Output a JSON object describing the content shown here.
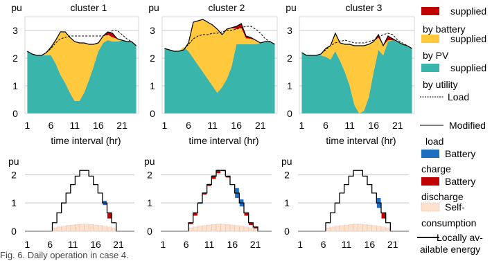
{
  "figure_caption": "Fig. 6. Daily operation in case 4.",
  "colors": {
    "battery": "#c00000",
    "pv": "#ffc83d",
    "utility": "#3ab5ac",
    "self": "#fde2d0",
    "self_edge": "#e9a27a",
    "charge": "#1f6fc0",
    "discharge": "#c00000",
    "grid": "#c8c8c8",
    "line": "#000000"
  },
  "legend_top": [
    {
      "key": "battery",
      "line1": "supplied",
      "line2": "by battery",
      "swatch": "battery"
    },
    {
      "key": "pv",
      "line1": "supplied",
      "line2": "by PV",
      "swatch": "pv"
    },
    {
      "key": "utility",
      "line1": "supplied",
      "line2": "by utility",
      "swatch": "utility"
    },
    {
      "key": "load",
      "line1": "Load",
      "line2": "",
      "swatch": "dashed"
    },
    {
      "key": "modified",
      "line1": "Modified",
      "line2": "load",
      "swatch": "solid-thin"
    }
  ],
  "legend_bottom": [
    {
      "key": "charge",
      "line1": "Battery",
      "line2": "charge",
      "swatch": "charge"
    },
    {
      "key": "discharge",
      "line1": "Battery",
      "line2": "discharge",
      "swatch": "discharge"
    },
    {
      "key": "self",
      "line1": "Self-",
      "line2": "consumption",
      "swatch": "self"
    },
    {
      "key": "local",
      "line1": "Locally av-",
      "line2": "ailable energy",
      "swatch": "solid-thick"
    }
  ],
  "chart_data": [
    {
      "type": "area",
      "title": "cluster 1",
      "ylabel": "pu",
      "xlabel": "time interval (hr)",
      "x": [
        1,
        2,
        3,
        4,
        5,
        6,
        7,
        8,
        9,
        10,
        11,
        12,
        13,
        14,
        15,
        16,
        17,
        18,
        19,
        20,
        21,
        22,
        23,
        24
      ],
      "xticks": [
        1,
        6,
        11,
        16,
        21
      ],
      "yticks": [
        0,
        1,
        2,
        3
      ],
      "ylim": [
        0,
        3.5
      ],
      "grid": true,
      "load": [
        2.25,
        2.15,
        2.1,
        2.1,
        2.2,
        2.35,
        2.55,
        2.7,
        2.75,
        2.8,
        2.8,
        2.8,
        2.8,
        2.8,
        2.8,
        2.8,
        2.8,
        2.85,
        3,
        3,
        2.85,
        2.7,
        2.6,
        2.45
      ],
      "modified": [
        2.25,
        2.15,
        2.1,
        2.1,
        2.2,
        2.4,
        2.65,
        2.95,
        2.95,
        2.75,
        2.6,
        2.55,
        2.55,
        2.5,
        2.5,
        2.55,
        2.8,
        2.95,
        2.9,
        2.7,
        2.65,
        2.6,
        2.6,
        2.45
      ],
      "utility": [
        2.25,
        2.15,
        2.1,
        2.1,
        2.1,
        2.1,
        1.8,
        1.4,
        1.1,
        0.75,
        0.45,
        0.45,
        0.75,
        1.2,
        1.7,
        2.25,
        2.55,
        2.65,
        2.6,
        2.6,
        2.65,
        2.6,
        2.6,
        2.45
      ],
      "battery": [
        0,
        0,
        0,
        0,
        0,
        0,
        0,
        0,
        0,
        0,
        0,
        0,
        0,
        0,
        0,
        0,
        0,
        0.1,
        0.15,
        0,
        0,
        0,
        0,
        0
      ]
    },
    {
      "type": "area",
      "title": "cluster 2",
      "ylabel": "pu",
      "xlabel": "time interval (hr)",
      "x": [
        1,
        2,
        3,
        4,
        5,
        6,
        7,
        8,
        9,
        10,
        11,
        12,
        13,
        14,
        15,
        16,
        17,
        18,
        19,
        20,
        21,
        22,
        23,
        24
      ],
      "xticks": [
        1,
        6,
        11,
        16,
        21
      ],
      "yticks": [
        0,
        1,
        2,
        3
      ],
      "ylim": [
        0,
        3.5
      ],
      "grid": true,
      "load": [
        2.35,
        2.3,
        2.25,
        2.25,
        2.3,
        2.5,
        2.7,
        2.8,
        2.85,
        2.85,
        2.9,
        2.9,
        2.95,
        3,
        3,
        3.05,
        3.1,
        3.15,
        3.15,
        3.05,
        2.9,
        2.7,
        2.6,
        2.5
      ],
      "modified": [
        2.35,
        2.3,
        2.25,
        2.25,
        2.3,
        2.55,
        3.3,
        3.35,
        3.4,
        3.3,
        3.2,
        3.05,
        2.85,
        3.05,
        3.1,
        3.15,
        3.25,
        2.8,
        2.75,
        2.65,
        2.55,
        2.6,
        2.6,
        2.5
      ],
      "utility": [
        2.35,
        2.3,
        2.25,
        2.25,
        2.4,
        2.25,
        2.0,
        1.75,
        1.5,
        1.25,
        1.0,
        0.75,
        0.95,
        1.25,
        1.7,
        2.5,
        2.5,
        2.5,
        2.5,
        2.5,
        2.55,
        2.6,
        2.6,
        2.5
      ],
      "battery": [
        0,
        0,
        0,
        0,
        0,
        0,
        0,
        0,
        0,
        0,
        0,
        0,
        0,
        0,
        0,
        0.1,
        0.15,
        0.08,
        0.05,
        0,
        0,
        0,
        0,
        0
      ]
    },
    {
      "type": "area",
      "title": "cluster 3",
      "ylabel": "pu",
      "xlabel": "time interval (hr)",
      "x": [
        1,
        2,
        3,
        4,
        5,
        6,
        7,
        8,
        9,
        10,
        11,
        12,
        13,
        14,
        15,
        16,
        17,
        18,
        19,
        20,
        21,
        22,
        23,
        24
      ],
      "xticks": [
        1,
        6,
        11,
        16,
        21
      ],
      "yticks": [
        0,
        1,
        2,
        3
      ],
      "ylim": [
        0,
        3.5
      ],
      "grid": true,
      "load": [
        2.2,
        2.1,
        2.1,
        2.1,
        2.15,
        2.3,
        2.45,
        2.55,
        2.6,
        2.65,
        2.6,
        2.55,
        2.55,
        2.55,
        2.6,
        2.65,
        2.75,
        2.85,
        2.9,
        2.85,
        2.65,
        2.55,
        2.45,
        2.35
      ],
      "modified": [
        2.2,
        2.1,
        2.1,
        2.1,
        2.15,
        2.35,
        2.45,
        2.9,
        2.55,
        2.5,
        2.5,
        2.45,
        2.45,
        2.45,
        2.5,
        2.6,
        2.85,
        2.45,
        2.8,
        2.7,
        2.6,
        2.5,
        2.45,
        2.35
      ],
      "utility": [
        2.2,
        2.1,
        2.1,
        2.1,
        2.1,
        2.05,
        1.95,
        2.25,
        1.9,
        1.5,
        1.0,
        0.3,
        0.0,
        0.1,
        0.6,
        1.5,
        2.3,
        2.1,
        2.6,
        2.65,
        2.6,
        2.5,
        2.45,
        2.35
      ],
      "battery": [
        0,
        0,
        0,
        0,
        0,
        0,
        0,
        0,
        0,
        0,
        0,
        0,
        0,
        0,
        0,
        0,
        0.1,
        0,
        0.15,
        0.05,
        0,
        0,
        0,
        0
      ]
    },
    {
      "type": "bar",
      "ylabel": "pu",
      "x": [
        1,
        2,
        3,
        4,
        5,
        6,
        7,
        8,
        9,
        10,
        11,
        12,
        13,
        14,
        15,
        16,
        17,
        18,
        19,
        20,
        21,
        22,
        23,
        24
      ],
      "xticks": [
        1,
        6,
        11,
        16,
        21
      ],
      "yticks": [
        0,
        1,
        2
      ],
      "ylim": [
        0,
        2.4
      ],
      "grid": true,
      "local": [
        0,
        0,
        0,
        0,
        0,
        0,
        0.3,
        0.65,
        1.0,
        1.35,
        1.65,
        1.95,
        2.15,
        2.15,
        1.95,
        1.65,
        1.35,
        1.0,
        0.65,
        0.3,
        0,
        0,
        0,
        0
      ],
      "self": [
        0,
        0,
        0,
        0,
        0,
        0,
        0.12,
        0.15,
        0.18,
        0.2,
        0.22,
        0.24,
        0.25,
        0.25,
        0.24,
        0.22,
        0.2,
        0.18,
        0.15,
        0.12,
        0,
        0,
        0,
        0
      ],
      "charge": [
        0,
        0,
        0,
        0,
        0,
        0,
        0,
        0,
        0,
        0,
        0,
        0,
        0,
        0,
        0,
        0,
        0,
        0.15,
        0,
        0,
        0,
        0,
        0,
        0
      ],
      "discharge": [
        0,
        0,
        0,
        0,
        0,
        0,
        0,
        0,
        0,
        0,
        0,
        0,
        0,
        0,
        0,
        0,
        0,
        0,
        0.2,
        0,
        0,
        0,
        0,
        0
      ]
    },
    {
      "type": "bar",
      "ylabel": "pu",
      "x": [
        1,
        2,
        3,
        4,
        5,
        6,
        7,
        8,
        9,
        10,
        11,
        12,
        13,
        14,
        15,
        16,
        17,
        18,
        19,
        20,
        21,
        22,
        23,
        24
      ],
      "xticks": [
        1,
        6,
        11,
        16,
        21
      ],
      "yticks": [
        0,
        1,
        2
      ],
      "ylim": [
        0,
        2.4
      ],
      "grid": true,
      "local": [
        0,
        0,
        0,
        0,
        0,
        0,
        0.3,
        0.65,
        1.0,
        1.35,
        1.65,
        1.95,
        2.15,
        2.15,
        1.95,
        1.65,
        1.35,
        1.0,
        0.65,
        0.3,
        0.15,
        0,
        0,
        0
      ],
      "self": [
        0,
        0,
        0,
        0,
        0,
        0,
        0.12,
        0.15,
        0.18,
        0.2,
        0.22,
        0.24,
        0.25,
        0.25,
        0.24,
        0.22,
        0.2,
        0.18,
        0.15,
        0.12,
        0.08,
        0,
        0,
        0
      ],
      "charge": [
        0,
        0,
        0,
        0,
        0,
        0,
        0,
        0,
        0.05,
        0.05,
        0.05,
        0.05,
        0.05,
        0.05,
        0,
        0,
        0.35,
        0.25,
        0,
        0,
        0,
        0,
        0,
        0
      ],
      "discharge": [
        0,
        0,
        0,
        0,
        0,
        0,
        0.05,
        0.1,
        0,
        0.05,
        0.05,
        0.1,
        0.1,
        0,
        0.05,
        0,
        0,
        0,
        0.1,
        0.08,
        0.05,
        0,
        0,
        0
      ]
    },
    {
      "type": "bar",
      "ylabel": "pu",
      "x": [
        1,
        2,
        3,
        4,
        5,
        6,
        7,
        8,
        9,
        10,
        11,
        12,
        13,
        14,
        15,
        16,
        17,
        18,
        19,
        20,
        21,
        22,
        23,
        24
      ],
      "xticks": [
        1,
        6,
        11,
        16,
        21
      ],
      "yticks": [
        0,
        1,
        2
      ],
      "ylim": [
        0,
        2.4
      ],
      "grid": true,
      "local": [
        0,
        0,
        0,
        0,
        0,
        0,
        0.3,
        0.65,
        1.0,
        1.35,
        1.65,
        1.95,
        2.15,
        2.15,
        1.95,
        1.65,
        1.35,
        1.0,
        0.65,
        0.3,
        0,
        0,
        0,
        0
      ],
      "self": [
        0,
        0,
        0,
        0,
        0,
        0,
        0.12,
        0.15,
        0.18,
        0.2,
        0.22,
        0.24,
        0.25,
        0.25,
        0.24,
        0.22,
        0.2,
        0.18,
        0.15,
        0.12,
        0,
        0,
        0,
        0
      ],
      "charge": [
        0,
        0,
        0,
        0,
        0,
        0,
        0,
        0,
        0,
        0,
        0,
        0,
        0,
        0,
        0,
        0,
        0,
        0.35,
        0,
        0,
        0,
        0,
        0,
        0
      ],
      "discharge": [
        0,
        0,
        0,
        0,
        0,
        0,
        0,
        0,
        0,
        0,
        0,
        0,
        0,
        0,
        0,
        0,
        0,
        0,
        0.2,
        0,
        0,
        0,
        0,
        0
      ]
    }
  ]
}
